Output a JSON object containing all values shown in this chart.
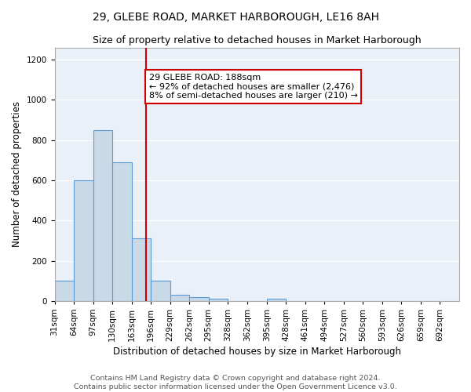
{
  "title": "29, GLEBE ROAD, MARKET HARBOROUGH, LE16 8AH",
  "subtitle": "Size of property relative to detached houses in Market Harborough",
  "xlabel": "Distribution of detached houses by size in Market Harborough",
  "ylabel": "Number of detached properties",
  "bin_edges": [
    31,
    64,
    97,
    130,
    163,
    196,
    229,
    262,
    295,
    328,
    362,
    395,
    428,
    461,
    494,
    527,
    560,
    593,
    626,
    659,
    692
  ],
  "bar_heights": [
    100,
    600,
    850,
    690,
    310,
    100,
    30,
    20,
    10,
    0,
    0,
    10,
    0,
    0,
    0,
    0,
    0,
    0,
    0,
    0
  ],
  "bar_color": "#c9d9e8",
  "bar_edge_color": "#5b9bd5",
  "property_size": 188,
  "red_line_color": "#cc0000",
  "annotation_text": "29 GLEBE ROAD: 188sqm\n← 92% of detached houses are smaller (2,476)\n8% of semi-detached houses are larger (210) →",
  "annotation_box_color": "white",
  "annotation_box_edge_color": "#cc0000",
  "ylim": [
    0,
    1260
  ],
  "yticks": [
    0,
    200,
    400,
    600,
    800,
    1000,
    1200
  ],
  "background_color": "#eaf0f8",
  "footer_text": "Contains HM Land Registry data © Crown copyright and database right 2024.\nContains public sector information licensed under the Open Government Licence v3.0.",
  "title_fontsize": 10,
  "subtitle_fontsize": 9,
  "axis_label_fontsize": 8.5,
  "tick_fontsize": 7.5,
  "footer_fontsize": 6.8,
  "annotation_fontsize": 8
}
